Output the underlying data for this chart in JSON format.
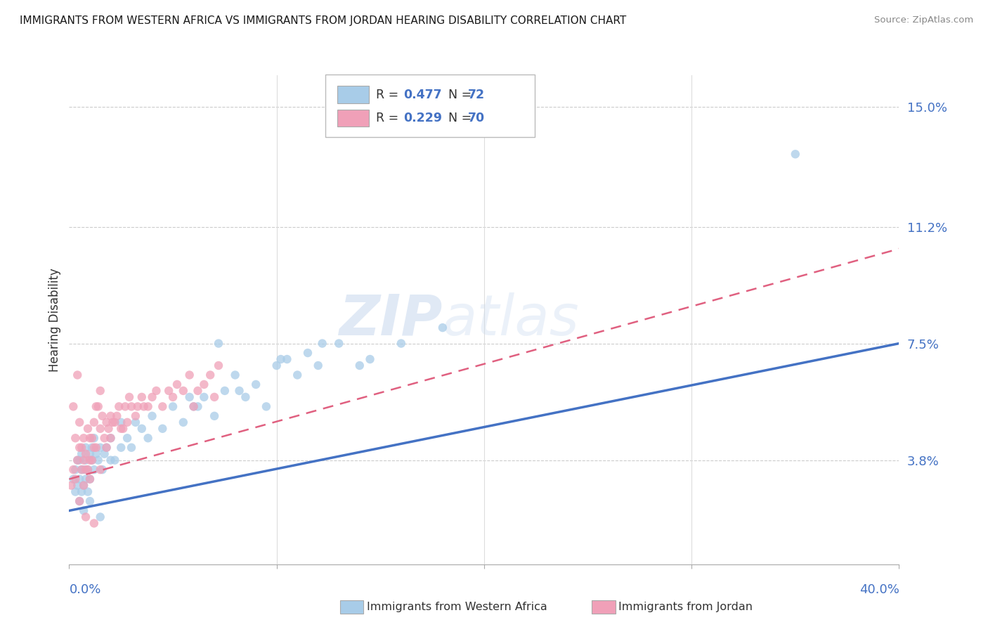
{
  "title": "IMMIGRANTS FROM WESTERN AFRICA VS IMMIGRANTS FROM JORDAN HEARING DISABILITY CORRELATION CHART",
  "source": "Source: ZipAtlas.com",
  "xmin": 0.0,
  "xmax": 40.0,
  "ymin": 0.5,
  "ymax": 16.0,
  "ylabel_ticks": [
    3.8,
    7.5,
    11.2,
    15.0
  ],
  "ylabel_labels": [
    "3.8%",
    "7.5%",
    "11.2%",
    "15.0%"
  ],
  "legend1_r": "0.477",
  "legend1_n": "72",
  "legend2_r": "0.229",
  "legend2_n": "70",
  "color_blue": "#A8CCE8",
  "color_pink": "#F0A0B8",
  "color_blue_dark": "#4472C4",
  "color_pink_dark": "#E06080",
  "color_label": "#4472C4",
  "watermark": "ZIPatlas",
  "wa_x": [
    0.2,
    0.3,
    0.3,
    0.4,
    0.4,
    0.5,
    0.5,
    0.5,
    0.6,
    0.6,
    0.6,
    0.7,
    0.7,
    0.7,
    0.8,
    0.8,
    0.8,
    0.9,
    0.9,
    1.0,
    1.0,
    1.0,
    1.1,
    1.1,
    1.2,
    1.2,
    1.3,
    1.4,
    1.5,
    1.5,
    1.6,
    1.7,
    1.8,
    2.0,
    2.0,
    2.2,
    2.5,
    2.5,
    2.8,
    3.0,
    3.2,
    3.5,
    3.8,
    4.0,
    4.5,
    5.0,
    5.5,
    5.8,
    6.0,
    6.2,
    6.5,
    7.0,
    7.2,
    7.5,
    8.0,
    8.2,
    8.5,
    9.0,
    9.5,
    10.0,
    10.2,
    10.5,
    11.0,
    11.5,
    12.0,
    12.2,
    13.0,
    14.0,
    14.5,
    16.0,
    18.0,
    35.0
  ],
  "wa_y": [
    3.2,
    3.5,
    2.8,
    3.0,
    3.8,
    2.5,
    3.2,
    3.8,
    2.8,
    3.5,
    4.0,
    3.0,
    3.5,
    2.2,
    3.2,
    3.8,
    4.2,
    2.8,
    3.5,
    3.2,
    4.0,
    2.5,
    3.8,
    4.2,
    3.5,
    4.5,
    4.0,
    3.8,
    4.2,
    2.0,
    3.5,
    4.0,
    4.2,
    3.8,
    4.5,
    3.8,
    4.2,
    5.0,
    4.5,
    4.2,
    5.0,
    4.8,
    4.5,
    5.2,
    4.8,
    5.5,
    5.0,
    5.8,
    5.5,
    5.5,
    5.8,
    5.2,
    7.5,
    6.0,
    6.5,
    6.0,
    5.8,
    6.2,
    5.5,
    6.8,
    7.0,
    7.0,
    6.5,
    7.2,
    6.8,
    7.5,
    7.5,
    6.8,
    7.0,
    7.5,
    8.0,
    13.5
  ],
  "jo_x": [
    0.1,
    0.2,
    0.2,
    0.3,
    0.3,
    0.4,
    0.4,
    0.5,
    0.5,
    0.5,
    0.6,
    0.6,
    0.7,
    0.7,
    0.7,
    0.8,
    0.8,
    0.9,
    0.9,
    1.0,
    1.0,
    1.0,
    1.1,
    1.1,
    1.2,
    1.2,
    1.3,
    1.3,
    1.4,
    1.5,
    1.5,
    1.6,
    1.7,
    1.8,
    1.8,
    1.9,
    2.0,
    2.0,
    2.1,
    2.2,
    2.3,
    2.4,
    2.5,
    2.6,
    2.7,
    2.8,
    2.9,
    3.0,
    3.2,
    3.3,
    3.5,
    3.6,
    3.8,
    4.0,
    4.2,
    4.5,
    4.8,
    5.0,
    5.2,
    5.5,
    5.8,
    6.0,
    6.2,
    6.5,
    6.8,
    7.0,
    7.2,
    0.8,
    1.5,
    1.2
  ],
  "jo_y": [
    3.0,
    3.5,
    5.5,
    4.5,
    3.2,
    3.8,
    6.5,
    5.0,
    4.2,
    2.5,
    4.2,
    3.5,
    3.8,
    4.5,
    3.0,
    4.0,
    3.5,
    3.5,
    4.8,
    3.8,
    4.5,
    3.2,
    4.5,
    3.8,
    5.0,
    4.2,
    4.2,
    5.5,
    5.5,
    4.8,
    3.5,
    5.2,
    4.5,
    5.0,
    4.2,
    4.8,
    5.2,
    4.5,
    5.0,
    5.0,
    5.2,
    5.5,
    4.8,
    4.8,
    5.5,
    5.0,
    5.8,
    5.5,
    5.2,
    5.5,
    5.8,
    5.5,
    5.5,
    5.8,
    6.0,
    5.5,
    6.0,
    5.8,
    6.2,
    6.0,
    6.5,
    5.5,
    6.0,
    6.2,
    6.5,
    5.8,
    6.8,
    2.0,
    6.0,
    1.8
  ]
}
